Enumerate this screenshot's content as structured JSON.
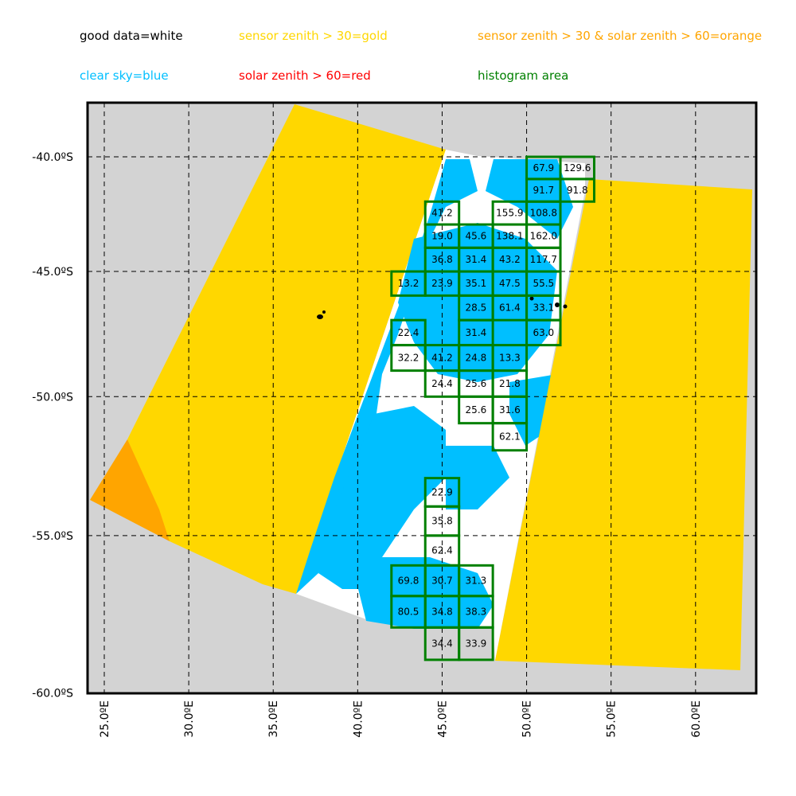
{
  "legend": [
    {
      "label": "good data=white",
      "color": "#000000"
    },
    {
      "label": "sensor zenith > 30=gold",
      "color": "#FFD700"
    },
    {
      "label": "sensor zenith > 30 & solar zenith > 60=orange",
      "color": "#FFA500"
    },
    {
      "label": "clear sky=blue",
      "color": "#00BFFF"
    },
    {
      "label": "solar zenith > 60=red",
      "color": "#FF0000"
    },
    {
      "label": "histogram area",
      "color": "#008000"
    }
  ],
  "colors": {
    "background": "#D3D3D3",
    "gold": "#FFD700",
    "orange": "#FFA500",
    "blue": "#00BFFF",
    "white": "#FFFFFF",
    "box": "#008000"
  },
  "map": {
    "lat_ticks": [
      {
        "value": -40,
        "label": "-40.0ºS"
      },
      {
        "value": -45,
        "label": "-45.0ºS"
      },
      {
        "value": -50,
        "label": "-50.0ºS"
      },
      {
        "value": -55,
        "label": "-55.0ºS"
      },
      {
        "value": -60,
        "label": "-60.0ºS"
      }
    ],
    "lon_ticks": [
      {
        "value": 25,
        "label": "25.0ºE"
      },
      {
        "value": 30,
        "label": "30.0ºE"
      },
      {
        "value": 35,
        "label": "35.0ºE"
      },
      {
        "value": 40,
        "label": "40.0ºE"
      },
      {
        "value": 45,
        "label": "45.0ºE"
      },
      {
        "value": 50,
        "label": "50.0ºE"
      },
      {
        "value": 55,
        "label": "55.0ºE"
      },
      {
        "value": 60,
        "label": "60.0ºE"
      }
    ],
    "lon_range": [
      24,
      63.6
    ],
    "lat_range": [
      -60,
      -37.6
    ],
    "cell_size_deg": [
      2,
      1
    ],
    "cells": [
      {
        "lon": 50,
        "lat": -40,
        "value": "67.9"
      },
      {
        "lon": 52,
        "lat": -40,
        "value": "129.6"
      },
      {
        "lon": 50,
        "lat": -41,
        "value": "91.7"
      },
      {
        "lon": 52,
        "lat": -41,
        "value": "91.8"
      },
      {
        "lon": 44,
        "lat": -42,
        "value": "41.2"
      },
      {
        "lon": 48,
        "lat": -42,
        "value": "155.9"
      },
      {
        "lon": 50,
        "lat": -42,
        "value": "108.8"
      },
      {
        "lon": 44,
        "lat": -43,
        "value": "19.0"
      },
      {
        "lon": 46,
        "lat": -43,
        "value": "45.6"
      },
      {
        "lon": 48,
        "lat": -43,
        "value": "138.1"
      },
      {
        "lon": 50,
        "lat": -43,
        "value": "162.0"
      },
      {
        "lon": 44,
        "lat": -44,
        "value": "36.8"
      },
      {
        "lon": 46,
        "lat": -44,
        "value": "31.4"
      },
      {
        "lon": 48,
        "lat": -44,
        "value": "43.2"
      },
      {
        "lon": 50,
        "lat": -44,
        "value": "117.7"
      },
      {
        "lon": 42,
        "lat": -45,
        "value": "13.2"
      },
      {
        "lon": 44,
        "lat": -45,
        "value": "23.9"
      },
      {
        "lon": 46,
        "lat": -45,
        "value": "35.1"
      },
      {
        "lon": 48,
        "lat": -45,
        "value": "47.5"
      },
      {
        "lon": 50,
        "lat": -45,
        "value": "55.5"
      },
      {
        "lon": 46,
        "lat": -46,
        "value": "28.5"
      },
      {
        "lon": 48,
        "lat": -46,
        "value": "61.4"
      },
      {
        "lon": 50,
        "lat": -46,
        "value": "33.1"
      },
      {
        "lon": 42,
        "lat": -47,
        "value": "22.4"
      },
      {
        "lon": 46,
        "lat": -47,
        "value": "31.4"
      },
      {
        "lon": 50,
        "lat": -47,
        "value": "63.0"
      },
      {
        "lon": 42,
        "lat": -48,
        "value": "32.2"
      },
      {
        "lon": 44,
        "lat": -48,
        "value": "41.2"
      },
      {
        "lon": 46,
        "lat": -48,
        "value": "24.8"
      },
      {
        "lon": 48,
        "lat": -48,
        "value": "13.3"
      },
      {
        "lon": 44,
        "lat": -49,
        "value": "24.4"
      },
      {
        "lon": 46,
        "lat": -49,
        "value": "25.6"
      },
      {
        "lon": 48,
        "lat": -49,
        "value": "21.8"
      },
      {
        "lon": 46,
        "lat": -50,
        "value": "25.6"
      },
      {
        "lon": 48,
        "lat": -50,
        "value": "31.6"
      },
      {
        "lon": 48,
        "lat": -51,
        "value": "62.1"
      },
      {
        "lon": 44,
        "lat": -53,
        "value": "22.9"
      },
      {
        "lon": 44,
        "lat": -54,
        "value": "35.8"
      },
      {
        "lon": 44,
        "lat": -55,
        "value": "62.4"
      },
      {
        "lon": 42,
        "lat": -56,
        "value": "69.8"
      },
      {
        "lon": 44,
        "lat": -56,
        "value": "30.7"
      },
      {
        "lon": 46,
        "lat": -56,
        "value": "31.3"
      },
      {
        "lon": 42,
        "lat": -57,
        "value": "80.5"
      },
      {
        "lon": 44,
        "lat": -57,
        "value": "34.8"
      },
      {
        "lon": 46,
        "lat": -57,
        "value": "38.3"
      },
      {
        "lon": 44,
        "lat": -58,
        "value": "34.4"
      },
      {
        "lon": 46,
        "lat": -58,
        "value": "33.9"
      }
    ]
  }
}
